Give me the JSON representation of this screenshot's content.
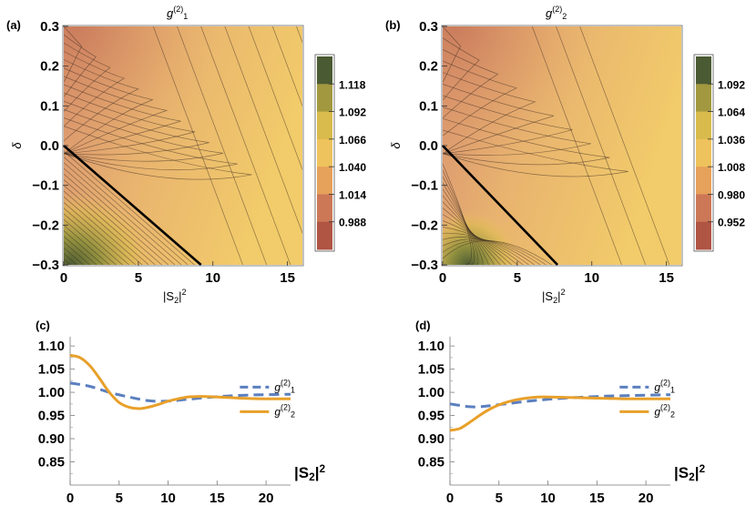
{
  "chart_data": [
    {
      "panel": "(a)",
      "type": "heatmap",
      "title": "g(2)1",
      "xlabel": "|S2|2",
      "ylabel": "δ",
      "xlim": [
        0,
        16
      ],
      "ylim": [
        -0.3,
        0.3
      ],
      "xticks": [
        "0",
        "5",
        "10",
        "15"
      ],
      "yticks": [
        "0.3",
        "0.2",
        "0.1",
        "0.0",
        "−0.1",
        "−0.2",
        "−0.3"
      ],
      "colorbar_ticks": [
        "1.118",
        "1.092",
        "1.066",
        "1.040",
        "1.014",
        "0.988"
      ],
      "colorbar_colors": [
        "#4a5a32",
        "#a2983f",
        "#d8bb4c",
        "#eec25c",
        "#e6a15a",
        "#cc7857",
        "#b05444"
      ],
      "boundary_line": {
        "x": [
          0,
          9.2
        ],
        "y": [
          0.0,
          -0.3
        ]
      }
    },
    {
      "panel": "(b)",
      "type": "heatmap",
      "title": "g(2)2",
      "xlabel": "|S2|2",
      "ylabel": "δ",
      "xlim": [
        0,
        16
      ],
      "ylim": [
        -0.3,
        0.3
      ],
      "xticks": [
        "0",
        "5",
        "10",
        "15"
      ],
      "yticks": [
        "0.3",
        "0.2",
        "0.1",
        "0.0",
        "−0.1",
        "−0.2",
        "−0.3"
      ],
      "colorbar_ticks": [
        "1.092",
        "1.064",
        "1.036",
        "1.008",
        "0.980",
        "0.952"
      ],
      "colorbar_colors": [
        "#4a5a32",
        "#a2983f",
        "#d8bb4c",
        "#eec25c",
        "#e6a15a",
        "#cc7857",
        "#b05444"
      ],
      "boundary_line": {
        "x": [
          0,
          7.7
        ],
        "y": [
          0.0,
          -0.3
        ]
      }
    },
    {
      "panel": "(c)",
      "type": "line",
      "xlabel": "|S2|2",
      "ylabel": "",
      "xlim": [
        0,
        22.5
      ],
      "ylim": [
        0.8,
        1.12
      ],
      "xticks": [
        "0",
        "5",
        "10",
        "15",
        "20"
      ],
      "yticks": [
        "1.10",
        "1.05",
        "1.00",
        "0.95",
        "0.90",
        "0.85"
      ],
      "series": [
        {
          "name": "g(2)1",
          "style": "dashed",
          "color": "#5b7fbf",
          "x": [
            0,
            2,
            4,
            6,
            8,
            10,
            12,
            14,
            16,
            18,
            20,
            22.5
          ],
          "y": [
            1.02,
            1.013,
            1.0,
            0.99,
            0.982,
            0.981,
            0.985,
            0.989,
            0.992,
            0.994,
            0.995,
            0.996
          ]
        },
        {
          "name": "g(2)2",
          "style": "solid",
          "color": "#e8a02a",
          "x": [
            0,
            1,
            2,
            3,
            4,
            5,
            6,
            7,
            8,
            9,
            10,
            11,
            12,
            13,
            14,
            16,
            18,
            20,
            22.5
          ],
          "y": [
            1.08,
            1.075,
            1.058,
            1.03,
            1.0,
            0.978,
            0.968,
            0.965,
            0.968,
            0.974,
            0.981,
            0.986,
            0.99,
            0.991,
            0.991,
            0.989,
            0.987,
            0.986,
            0.986
          ]
        }
      ]
    },
    {
      "panel": "(d)",
      "type": "line",
      "xlabel": "|S2|2",
      "ylabel": "",
      "xlim": [
        0,
        22.5
      ],
      "ylim": [
        0.8,
        1.12
      ],
      "xticks": [
        "0",
        "5",
        "10",
        "15",
        "20"
      ],
      "yticks": [
        "1.10",
        "1.05",
        "1.00",
        "0.95",
        "0.90",
        "0.85"
      ],
      "series": [
        {
          "name": "g(2)1",
          "style": "dashed",
          "color": "#5b7fbf",
          "x": [
            0,
            1,
            2,
            3,
            4,
            6,
            8,
            10,
            12,
            14,
            16,
            18,
            20,
            22.5
          ],
          "y": [
            0.975,
            0.972,
            0.969,
            0.969,
            0.971,
            0.976,
            0.981,
            0.985,
            0.988,
            0.99,
            0.992,
            0.993,
            0.994,
            0.995
          ]
        },
        {
          "name": "g(2)2",
          "style": "solid",
          "color": "#e8a02a",
          "x": [
            0,
            1,
            2,
            3,
            4,
            5,
            6,
            7,
            8,
            9,
            10,
            12,
            14,
            16,
            18,
            20,
            22.5
          ],
          "y": [
            0.918,
            0.922,
            0.935,
            0.95,
            0.963,
            0.973,
            0.98,
            0.985,
            0.988,
            0.99,
            0.99,
            0.989,
            0.988,
            0.987,
            0.986,
            0.986,
            0.986
          ]
        }
      ]
    }
  ]
}
